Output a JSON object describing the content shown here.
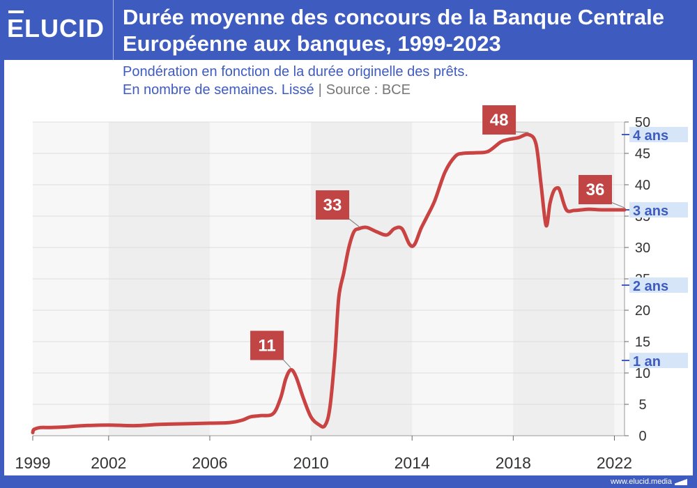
{
  "brand": {
    "logo_text": "ELUCID",
    "footer_url": "www.elucid.media"
  },
  "chart_data": {
    "type": "line",
    "title": "Durée moyenne des concours de la Banque Centrale Européenne aux banques, 1999-2023",
    "subtitle_line1": "Pondération en fonction de la durée originelle des prêts.",
    "subtitle_line2": "En nombre de semaines. Lissé",
    "source": "Source : BCE",
    "xlabel": "",
    "ylabel": "",
    "xlim": [
      1999,
      2022.4
    ],
    "ylim": [
      0,
      50
    ],
    "x_ticks": [
      1999,
      2002,
      2006,
      2010,
      2014,
      2018,
      2022
    ],
    "y_ticks": [
      0,
      5,
      10,
      15,
      20,
      25,
      30,
      35,
      40,
      45,
      50
    ],
    "grid": true,
    "series": [
      {
        "x": [
          1999.0,
          1999.05,
          1999.3,
          1999.7,
          2000.3,
          2001.0,
          2002.0,
          2003.0,
          2004.0,
          2005.0,
          2006.0,
          2006.8,
          2007.3,
          2007.6,
          2008.0,
          2008.5,
          2008.8,
          2009.0,
          2009.2,
          2009.4,
          2009.7,
          2010.0,
          2010.3,
          2010.55,
          2010.75,
          2010.95,
          2011.1,
          2011.3,
          2011.5,
          2011.7,
          2011.9,
          2012.2,
          2012.6,
          2013.0,
          2013.3,
          2013.6,
          2013.9,
          2014.1,
          2014.35,
          2014.6,
          2014.9,
          2015.3,
          2015.7,
          2016.0,
          2016.5,
          2017.0,
          2017.5,
          2017.8,
          2018.2,
          2018.6,
          2018.9,
          2019.1,
          2019.3,
          2019.45,
          2019.6,
          2019.75,
          2019.85,
          2020.1,
          2020.4,
          2020.7,
          2021.0,
          2021.5,
          2022.0,
          2022.4
        ],
        "values": [
          0.5,
          1.0,
          1.3,
          1.3,
          1.4,
          1.6,
          1.7,
          1.6,
          1.8,
          1.9,
          2.0,
          2.1,
          2.5,
          3.0,
          3.2,
          3.5,
          6.0,
          9.0,
          10.5,
          9.5,
          6.0,
          3.0,
          1.8,
          1.6,
          4.5,
          13.0,
          22.0,
          26.0,
          30.0,
          32.5,
          33.0,
          33.2,
          32.5,
          32.0,
          33.0,
          33.0,
          30.5,
          30.5,
          33.0,
          35.0,
          37.5,
          42.0,
          44.5,
          45.0,
          45.1,
          45.3,
          46.8,
          47.2,
          47.5,
          48.0,
          46.5,
          40.0,
          33.5,
          37.0,
          39.0,
          39.5,
          39.0,
          36.0,
          35.9,
          36.0,
          36.1,
          36.0,
          36.0,
          36.0
        ]
      }
    ],
    "annotations": [
      {
        "label": "11",
        "x": 2009.2,
        "y": 10.5
      },
      {
        "label": "33",
        "x": 2011.9,
        "y": 33.0
      },
      {
        "label": "48",
        "x": 2018.6,
        "y": 48.0
      },
      {
        "label": "36",
        "x": 2022.4,
        "y": 36.0
      }
    ],
    "reference_levels": [
      {
        "label": "1 an",
        "y": 12
      },
      {
        "label": "2 ans",
        "y": 24
      },
      {
        "label": "3 ans",
        "y": 36
      },
      {
        "label": "4 ans",
        "y": 48
      }
    ],
    "colors": {
      "line": "#c94343",
      "annotation_bg": "#c14545",
      "reference_text": "#3e5bbf",
      "reference_bg": "#d6e5f7",
      "band": "#eeeeee",
      "frame": "#3e5bbf"
    }
  }
}
